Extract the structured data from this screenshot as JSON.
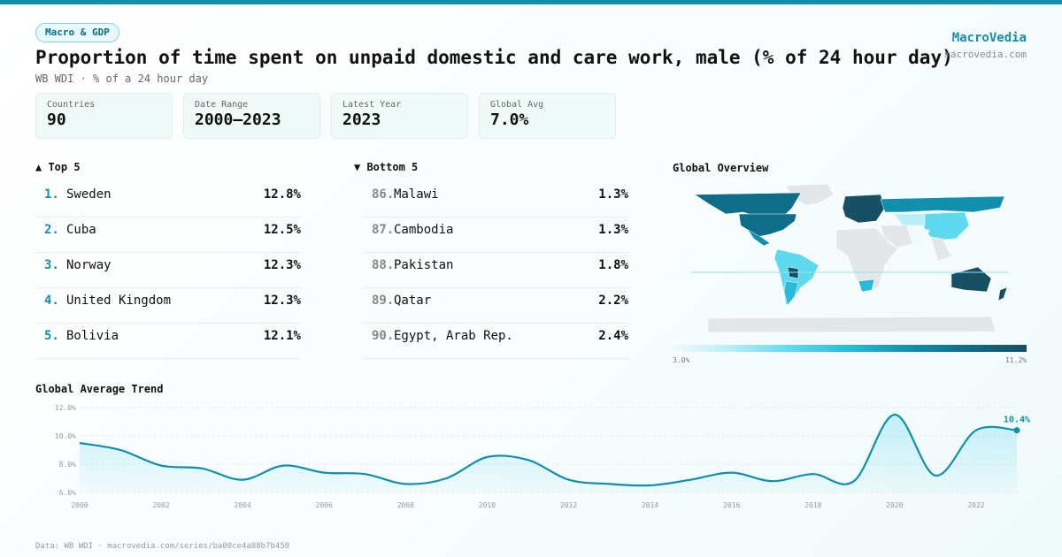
{
  "header": {
    "tag": "Macro & GDP",
    "title": "Proportion of time spent on unpaid domestic and care work, male (% of 24 hour day)",
    "subtitle": "WB WDI · % of a 24 hour day",
    "brand": "MacroVedia",
    "brand_url": "macrovedia.com"
  },
  "stats": [
    {
      "label": "Countries",
      "value": "90"
    },
    {
      "label": "Date Range",
      "value": "2000–2023"
    },
    {
      "label": "Latest Year",
      "value": "2023"
    },
    {
      "label": "Global Avg",
      "value": "7.0%"
    }
  ],
  "top5": {
    "title": "▲ Top 5",
    "items": [
      {
        "rank": "1.",
        "name": "Sweden",
        "value": "12.8%"
      },
      {
        "rank": "2.",
        "name": "Cuba",
        "value": "12.5%"
      },
      {
        "rank": "3.",
        "name": "Norway",
        "value": "12.3%"
      },
      {
        "rank": "4.",
        "name": "United Kingdom",
        "value": "12.3%"
      },
      {
        "rank": "5.",
        "name": "Bolivia",
        "value": "12.1%"
      }
    ]
  },
  "bottom5": {
    "title": "▼ Bottom 5",
    "items": [
      {
        "rank": "86.",
        "name": "Malawi",
        "value": "1.3%"
      },
      {
        "rank": "87.",
        "name": "Cambodia",
        "value": "1.3%"
      },
      {
        "rank": "88.",
        "name": "Pakistan",
        "value": "1.8%"
      },
      {
        "rank": "89.",
        "name": "Qatar",
        "value": "2.2%"
      },
      {
        "rank": "90.",
        "name": "Egypt, Arab Rep.",
        "value": "2.4%"
      }
    ]
  },
  "map": {
    "title": "Global Overview",
    "scale_min": "3.0%",
    "scale_max": "11.2%",
    "colors": [
      "#f0fbfd",
      "#5fd9ee",
      "#138fae",
      "#174f64"
    ],
    "no_data": "#e4e6e8"
  },
  "chart_data": {
    "type": "area",
    "title": "Global Average Trend",
    "x": [
      2000,
      2001,
      2002,
      2003,
      2004,
      2005,
      2006,
      2007,
      2008,
      2009,
      2010,
      2011,
      2012,
      2013,
      2014,
      2015,
      2016,
      2017,
      2018,
      2019,
      2020,
      2021,
      2022,
      2023
    ],
    "values": [
      9.5,
      9.0,
      7.9,
      7.7,
      6.9,
      7.9,
      7.4,
      7.3,
      6.6,
      7.0,
      8.5,
      8.3,
      6.9,
      6.6,
      6.5,
      6.9,
      7.4,
      6.8,
      7.3,
      6.8,
      11.5,
      7.2,
      10.4,
      10.4
    ],
    "ylim": [
      6,
      12
    ],
    "yticks": [
      "6.0%",
      "8.0%",
      "10.0%",
      "12.0%"
    ],
    "xticks": [
      "2000",
      "2002",
      "2004",
      "2006",
      "2008",
      "2010",
      "2012",
      "2014",
      "2016",
      "2018",
      "2020",
      "2022"
    ],
    "last_label": "10.4%",
    "color": "#0f8fab",
    "grid": true
  },
  "footer": "Data: WB WDI · macrovedia.com/series/ba00ce4a88b7b450"
}
